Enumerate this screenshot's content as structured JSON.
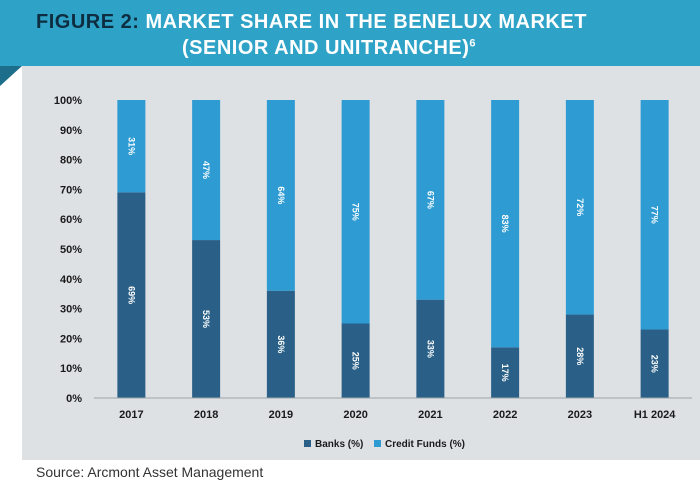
{
  "figure_label": "FIGURE 2:",
  "title_line1": "MARKET SHARE IN THE BENELUX MARKET",
  "title_line2": "(SENIOR AND UNITRANCHE)",
  "title_footnote": "6",
  "source": "Source: Arcmont Asset Management",
  "colors": {
    "banks": "#2a6087",
    "credit_funds": "#2e9bd3",
    "header": "#2ea3c7"
  },
  "chart_data": {
    "type": "bar",
    "stacked": true,
    "categories": [
      "2017",
      "2018",
      "2019",
      "2020",
      "2021",
      "2022",
      "2023",
      "H1 2024"
    ],
    "series": [
      {
        "name": "Banks (%)",
        "values": [
          69,
          53,
          36,
          25,
          33,
          17,
          28,
          23
        ],
        "labels": [
          "69%",
          "53%",
          "36%",
          "25%",
          "33%",
          "17%",
          "28%",
          "23%"
        ]
      },
      {
        "name": "Credit Funds (%)",
        "values": [
          31,
          47,
          64,
          75,
          67,
          83,
          72,
          77
        ],
        "labels": [
          "31%",
          "47%",
          "64%",
          "75%",
          "67%",
          "83%",
          "72%",
          "77%"
        ]
      }
    ],
    "yticks": [
      "0%",
      "10%",
      "20%",
      "30%",
      "40%",
      "50%",
      "60%",
      "70%",
      "80%",
      "90%",
      "100%"
    ],
    "ylim": [
      0,
      100
    ],
    "grid": false,
    "legend": "bottom"
  }
}
